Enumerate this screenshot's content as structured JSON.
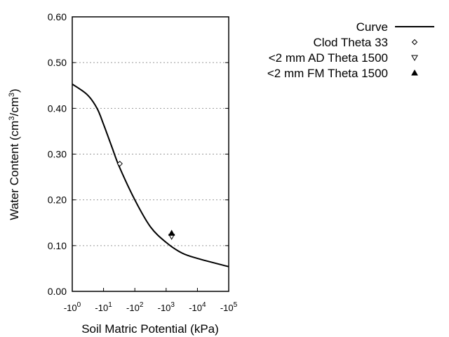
{
  "chart_data": {
    "type": "line",
    "title": "",
    "xlabel": "Soil Matric Potential (kPa)",
    "ylabel_parts": [
      "Water Content (cm",
      "3",
      "/cm",
      "3",
      ")"
    ],
    "x_scale": "log (negative)",
    "xlim": [
      -1,
      -100000
    ],
    "ylim": [
      0,
      0.6
    ],
    "x_ticks": [
      {
        "base": "-10",
        "exp": "0",
        "value": -1
      },
      {
        "base": "-10",
        "exp": "1",
        "value": -10
      },
      {
        "base": "-10",
        "exp": "2",
        "value": -100
      },
      {
        "base": "-10",
        "exp": "3",
        "value": -1000
      },
      {
        "base": "-10",
        "exp": "4",
        "value": -10000
      },
      {
        "base": "-10",
        "exp": "5",
        "value": -100000
      }
    ],
    "y_ticks": [
      "0.00",
      "0.10",
      "0.20",
      "0.30",
      "0.40",
      "0.50",
      "0.60"
    ],
    "grid": "horizontal dotted",
    "legend_position": "right",
    "series": [
      {
        "name": "Curve",
        "kind": "line",
        "color": "#000000",
        "x": [
          -1,
          -3,
          -6.2,
          -10,
          -18.6,
          -31.6,
          -100,
          -316,
          -1000,
          -3162,
          -10000,
          -100000
        ],
        "y": [
          0.453,
          0.43,
          0.4,
          0.365,
          0.315,
          0.273,
          0.2,
          0.141,
          0.107,
          0.084,
          0.072,
          0.054
        ]
      },
      {
        "name": "Clod Theta 33",
        "kind": "marker",
        "marker": "open-diamond",
        "x": [
          -33
        ],
        "y": [
          0.279
        ]
      },
      {
        "name": "<2 mm AD Theta 1500",
        "kind": "marker",
        "marker": "open-triangle-down",
        "x": [
          -1500
        ],
        "y": [
          0.12
        ]
      },
      {
        "name": "<2 mm FM Theta 1500",
        "kind": "marker",
        "marker": "filled-triangle-up",
        "x": [
          -1500
        ],
        "y": [
          0.127
        ]
      }
    ]
  }
}
